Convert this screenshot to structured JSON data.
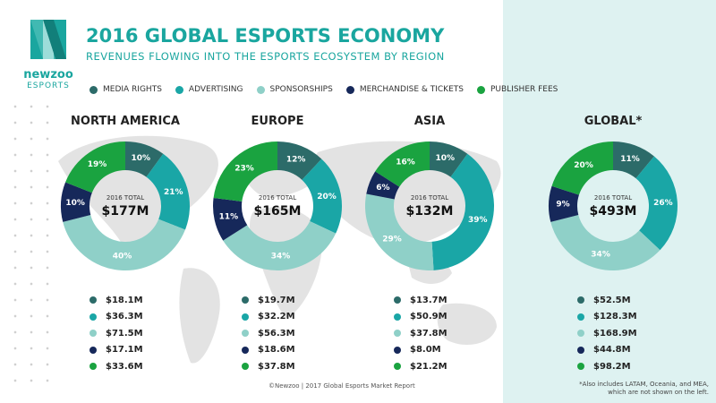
{
  "header": {
    "title": "2016 GLOBAL ESPORTS ECONOMY",
    "subtitle": "REVENUES FLOWING INTO THE ESPORTS ECOSYSTEM BY REGION"
  },
  "logo": {
    "brand": "newzoo",
    "sub": "ESPORTS"
  },
  "colors": {
    "media_rights": "#2c6b69",
    "advertising": "#1aa6a6",
    "sponsorships": "#8fd0c8",
    "merchandise_tickets": "#16285a",
    "publisher_fees": "#1aa340"
  },
  "legend": [
    {
      "label": "MEDIA RIGHTS",
      "color": "#2c6b69"
    },
    {
      "label": "ADVERTISING",
      "color": "#1aa6a6"
    },
    {
      "label": "SPONSORSHIPS",
      "color": "#8fd0c8"
    },
    {
      "label": "MERCHANDISE & TICKETS",
      "color": "#16285a"
    },
    {
      "label": "PUBLISHER FEES",
      "color": "#1aa340"
    }
  ],
  "chart_data": [
    {
      "type": "pie",
      "title": "NORTH AMERICA",
      "center_label": "2016 TOTAL",
      "total": "$177M",
      "categories": [
        "MEDIA RIGHTS",
        "ADVERTISING",
        "SPONSORSHIPS",
        "MERCHANDISE & TICKETS",
        "PUBLISHER FEES"
      ],
      "values": [
        10,
        21,
        40,
        10,
        19
      ],
      "percent_labels": [
        "10%",
        "21%",
        "40%",
        "10%",
        "19%"
      ],
      "amounts": [
        "$18.1M",
        "$36.3M",
        "$71.5M",
        "$17.1M",
        "$33.6M"
      ]
    },
    {
      "type": "pie",
      "title": "EUROPE",
      "center_label": "2016 TOTAL",
      "total": "$165M",
      "categories": [
        "MEDIA RIGHTS",
        "ADVERTISING",
        "SPONSORSHIPS",
        "MERCHANDISE & TICKETS",
        "PUBLISHER FEES"
      ],
      "values": [
        12,
        20,
        34,
        11,
        23
      ],
      "percent_labels": [
        "12%",
        "20%",
        "34%",
        "11%",
        "23%"
      ],
      "amounts": [
        "$19.7M",
        "$32.2M",
        "$56.3M",
        "$18.6M",
        "$37.8M"
      ]
    },
    {
      "type": "pie",
      "title": "ASIA",
      "center_label": "2016 TOTAL",
      "total": "$132M",
      "categories": [
        "MEDIA RIGHTS",
        "ADVERTISING",
        "SPONSORSHIPS",
        "MERCHANDISE & TICKETS",
        "PUBLISHER FEES"
      ],
      "values": [
        10,
        39,
        29,
        6,
        16
      ],
      "percent_labels": [
        "10%",
        "39%",
        "29%",
        "6%",
        "16%"
      ],
      "amounts": [
        "$13.7M",
        "$50.9M",
        "$37.8M",
        "$8.0M",
        "$21.2M"
      ]
    },
    {
      "type": "pie",
      "title": "GLOBAL*",
      "center_label": "2016 TOTAL",
      "total": "$493M",
      "categories": [
        "MEDIA RIGHTS",
        "ADVERTISING",
        "SPONSORSHIPS",
        "MERCHANDISE & TICKETS",
        "PUBLISHER FEES"
      ],
      "values": [
        11,
        26,
        34,
        9,
        20
      ],
      "percent_labels": [
        "11%",
        "26%",
        "34%",
        "9%",
        "20%"
      ],
      "amounts": [
        "$52.5M",
        "$128.3M",
        "$168.9M",
        "$44.8M",
        "$98.2M"
      ]
    }
  ],
  "footer": {
    "source": "©Newzoo | 2017 Global Esports Market Report",
    "footnote_line1": "*Also includes LATAM, Oceania, and MEA,",
    "footnote_line2": "which are not shown on the left."
  }
}
